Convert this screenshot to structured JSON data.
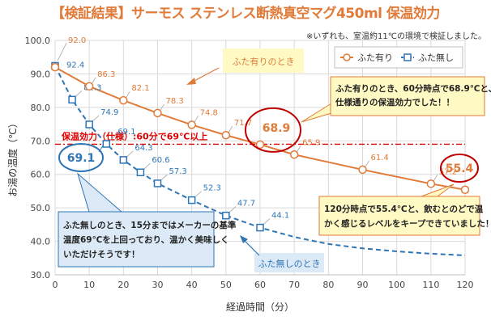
{
  "title": "【検証結果】サーモス ステンレス断熱真空マグ450ml 保温効力",
  "note": "※いずれも、室温約11℃の環境で検証しました。",
  "colors": {
    "with_lid": "#e07b39",
    "without_lid": "#2e75b6",
    "ref_line": "#e00000",
    "callout_red": "#c00000"
  },
  "chart_data": {
    "type": "line",
    "xlabel": "経過時間（分）",
    "ylabel": "お湯の温度（℃）",
    "xlim": [
      0,
      120
    ],
    "ylim": [
      30,
      100
    ],
    "xticks": [
      0,
      10,
      20,
      30,
      40,
      50,
      60,
      70,
      80,
      90,
      100,
      110,
      120
    ],
    "yticks": [
      "30.0",
      "40.0",
      "50.0",
      "60.0",
      "70.0",
      "80.0",
      "90.0",
      "100.0"
    ],
    "grid": true,
    "legend": {
      "position": "top-right",
      "entries": [
        "ふた有り",
        "ふた無し"
      ]
    },
    "series": [
      {
        "name": "ふた有り",
        "style": "solid",
        "marker": "circle",
        "x": [
          0,
          10,
          20,
          30,
          40,
          50,
          60,
          70,
          90,
          110,
          120
        ],
        "y": [
          92.0,
          86.3,
          82.1,
          78.3,
          74.8,
          71.7,
          68.9,
          65.9,
          61.4,
          57.2,
          55.4
        ],
        "labels": [
          "92.0",
          "86.3",
          "82.1",
          "78.3",
          "74.8",
          "71.7",
          "68.9",
          "65.9",
          "61.4",
          "57.2",
          "55.4"
        ]
      },
      {
        "name": "ふた無し",
        "style": "dashed",
        "marker": "square",
        "x": [
          0,
          5,
          10,
          15,
          20,
          25,
          30,
          40,
          50,
          60
        ],
        "y": [
          92.4,
          82.3,
          74.9,
          69.1,
          64.3,
          60.6,
          57.3,
          52.3,
          47.7,
          44.1
        ],
        "labels": [
          "92.4",
          "82.3",
          "74.9",
          "69.1",
          "64.3",
          "60.6",
          "57.3",
          "52.3",
          "47.7",
          "44.1"
        ],
        "trend_x": [
          60,
          70,
          80,
          90,
          100,
          110,
          120
        ],
        "trend_y": [
          44.1,
          41.3,
          39.2,
          37.9,
          37.0,
          36.3,
          35.8
        ]
      }
    ],
    "reference_line": {
      "y": 69,
      "label": "保温効力（仕様）:60分で69℃以上"
    },
    "annotations": {
      "with_lid_tag": "ふた有りのとき",
      "without_lid_tag": "ふた無しのとき",
      "highlight_60": "68.9",
      "highlight_120": "55.4",
      "highlight_15": "69.1",
      "callout_60": {
        "lines": [
          "ふた有りのとき、60分時点で68.9℃と、",
          "仕様通りの保温効力でした！！"
        ]
      },
      "callout_120": {
        "lines": [
          "120分時点で55.4℃と、飲むとのどで温",
          "かく感じるレベルをキープできていました！"
        ]
      },
      "callout_no_lid": {
        "lines": [
          "ふた無しのとき、15分まではメーカーの基準",
          "温度69℃を上回っており、温かく美味しく",
          "いただけそうです！"
        ]
      }
    }
  }
}
